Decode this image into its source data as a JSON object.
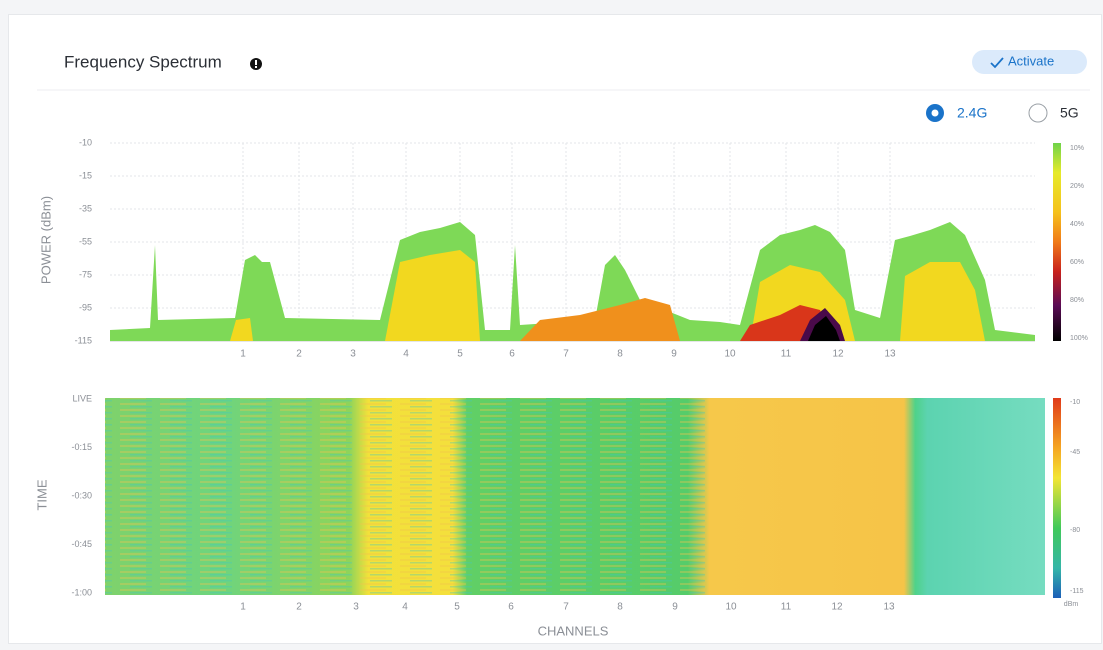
{
  "header": {
    "title": "Frequency Spectrum",
    "action": "Activate"
  },
  "band_options": [
    "2.4G",
    "5G"
  ],
  "selected_band": "2.4G",
  "spectrum": {
    "y_axis_label": "POWER (dBm)",
    "y_ticks": [
      -10,
      -15,
      -35,
      -55,
      -75,
      -95,
      -115
    ],
    "channels": [
      1,
      2,
      3,
      4,
      5,
      6,
      7,
      8,
      9,
      10,
      11,
      12,
      13
    ],
    "scale_labels": [
      "10%",
      "20%",
      "40%",
      "60%",
      "80%",
      "100%"
    ]
  },
  "waterfall": {
    "y_axis_label": "TIME",
    "time_ticks": [
      "LIVE",
      "-0:15",
      "-0:30",
      "-0:45",
      "-1:00"
    ],
    "channels": [
      1,
      2,
      3,
      4,
      5,
      6,
      7,
      8,
      9,
      10,
      11,
      12,
      13
    ],
    "x_axis_label": "CHANNELS",
    "scale_labels": [
      "-10",
      "-45",
      "-80",
      "-115"
    ],
    "scale_unit": "dBm"
  }
}
